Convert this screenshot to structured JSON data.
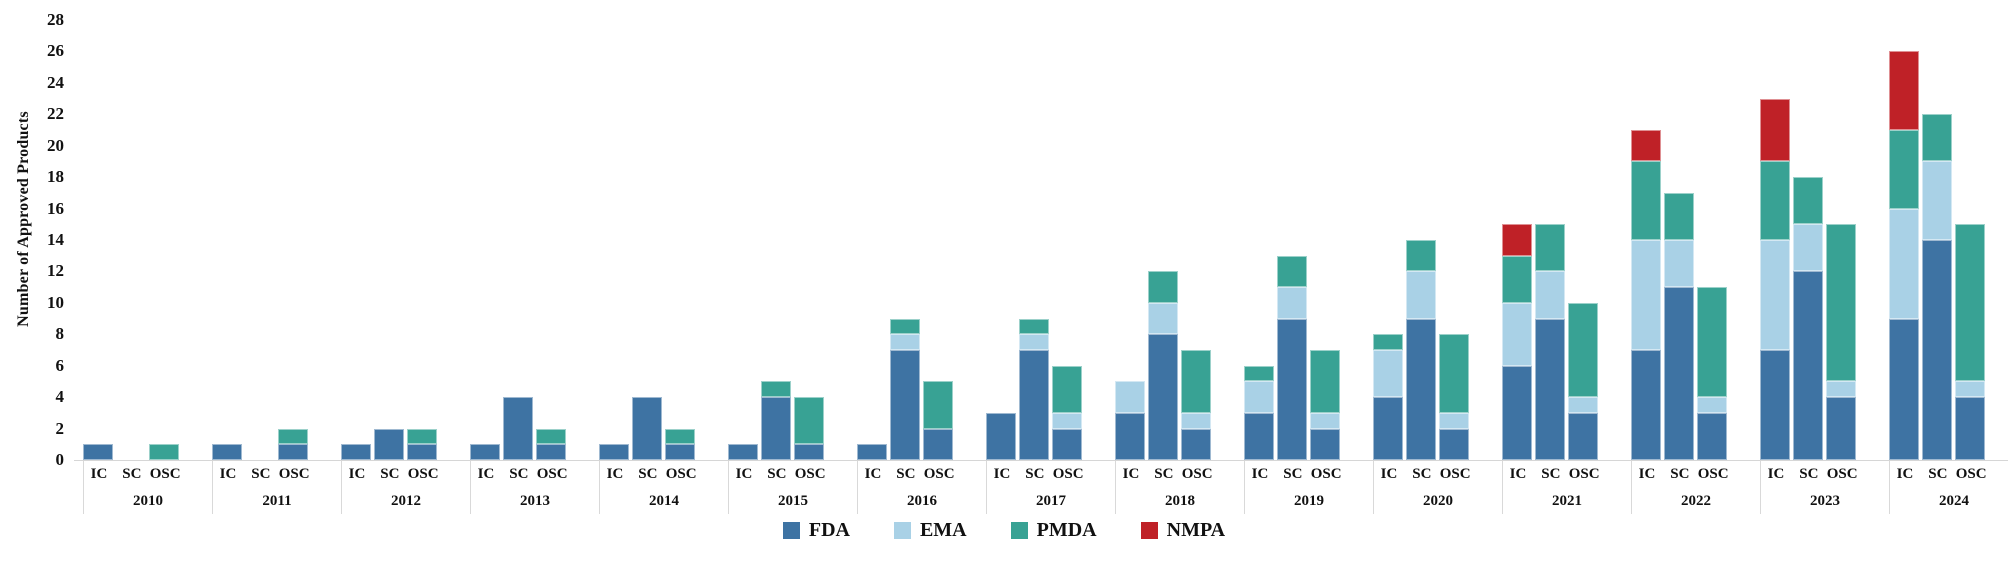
{
  "chart_data": {
    "type": "bar",
    "stacked": true,
    "title": "",
    "xlabel": "",
    "ylabel": "Number of Approved Products",
    "ylim": [
      0,
      28
    ],
    "ytick_step": 2,
    "yticks": [
      0,
      2,
      4,
      6,
      8,
      10,
      12,
      14,
      16,
      18,
      20,
      22,
      24,
      26,
      28
    ],
    "grid": false,
    "legend_position": "bottom",
    "subcategories": [
      "IC",
      "SC",
      "OSC"
    ],
    "values_order": [
      "FDA",
      "EMA",
      "PMDA",
      "NMPA"
    ],
    "colors": {
      "FDA": "#3e73a3",
      "EMA": "#a9d1e6",
      "PMDA": "#38a294",
      "NMPA": "#bf2127"
    },
    "years": [
      {
        "year": "2010",
        "IC": [
          1,
          0,
          0,
          0
        ],
        "SC": [
          0,
          0,
          0,
          0
        ],
        "OSC": [
          0,
          0,
          1,
          0
        ]
      },
      {
        "year": "2011",
        "IC": [
          1,
          0,
          0,
          0
        ],
        "SC": [
          0,
          0,
          0,
          0
        ],
        "OSC": [
          1,
          0,
          1,
          0
        ]
      },
      {
        "year": "2012",
        "IC": [
          1,
          0,
          0,
          0
        ],
        "SC": [
          2,
          0,
          0,
          0
        ],
        "OSC": [
          1,
          0,
          1,
          0
        ]
      },
      {
        "year": "2013",
        "IC": [
          1,
          0,
          0,
          0
        ],
        "SC": [
          4,
          0,
          0,
          0
        ],
        "OSC": [
          1,
          0,
          1,
          0
        ]
      },
      {
        "year": "2014",
        "IC": [
          1,
          0,
          0,
          0
        ],
        "SC": [
          4,
          0,
          0,
          0
        ],
        "OSC": [
          1,
          0,
          1,
          0
        ]
      },
      {
        "year": "2015",
        "IC": [
          1,
          0,
          0,
          0
        ],
        "SC": [
          4,
          0,
          1,
          0
        ],
        "OSC": [
          1,
          0,
          3,
          0
        ]
      },
      {
        "year": "2016",
        "IC": [
          1,
          0,
          0,
          0
        ],
        "SC": [
          7,
          1,
          1,
          0
        ],
        "OSC": [
          2,
          0,
          3,
          0
        ]
      },
      {
        "year": "2017",
        "IC": [
          3,
          0,
          0,
          0
        ],
        "SC": [
          7,
          1,
          1,
          0
        ],
        "OSC": [
          2,
          1,
          3,
          0
        ]
      },
      {
        "year": "2018",
        "IC": [
          3,
          2,
          0,
          0
        ],
        "SC": [
          8,
          2,
          2,
          0
        ],
        "OSC": [
          2,
          1,
          4,
          0
        ]
      },
      {
        "year": "2019",
        "IC": [
          3,
          2,
          1,
          0
        ],
        "SC": [
          9,
          2,
          2,
          0
        ],
        "OSC": [
          2,
          1,
          4,
          0
        ]
      },
      {
        "year": "2020",
        "IC": [
          4,
          3,
          1,
          0
        ],
        "SC": [
          9,
          3,
          2,
          0
        ],
        "OSC": [
          2,
          1,
          5,
          0
        ]
      },
      {
        "year": "2021",
        "IC": [
          6,
          4,
          3,
          2
        ],
        "SC": [
          9,
          3,
          3,
          0
        ],
        "OSC": [
          3,
          1,
          6,
          0
        ]
      },
      {
        "year": "2022",
        "IC": [
          7,
          7,
          5,
          2
        ],
        "SC": [
          11,
          3,
          3,
          0
        ],
        "OSC": [
          3,
          1,
          7,
          0
        ]
      },
      {
        "year": "2023",
        "IC": [
          7,
          7,
          5,
          4
        ],
        "SC": [
          12,
          3,
          3,
          0
        ],
        "OSC": [
          4,
          1,
          10,
          0
        ]
      },
      {
        "year": "2024",
        "IC": [
          9,
          7,
          5,
          5
        ],
        "SC": [
          14,
          5,
          3,
          0
        ],
        "OSC": [
          4,
          1,
          10,
          0
        ]
      }
    ],
    "legend_labels": [
      "FDA",
      "EMA",
      "PMDA",
      "NMPA"
    ]
  }
}
